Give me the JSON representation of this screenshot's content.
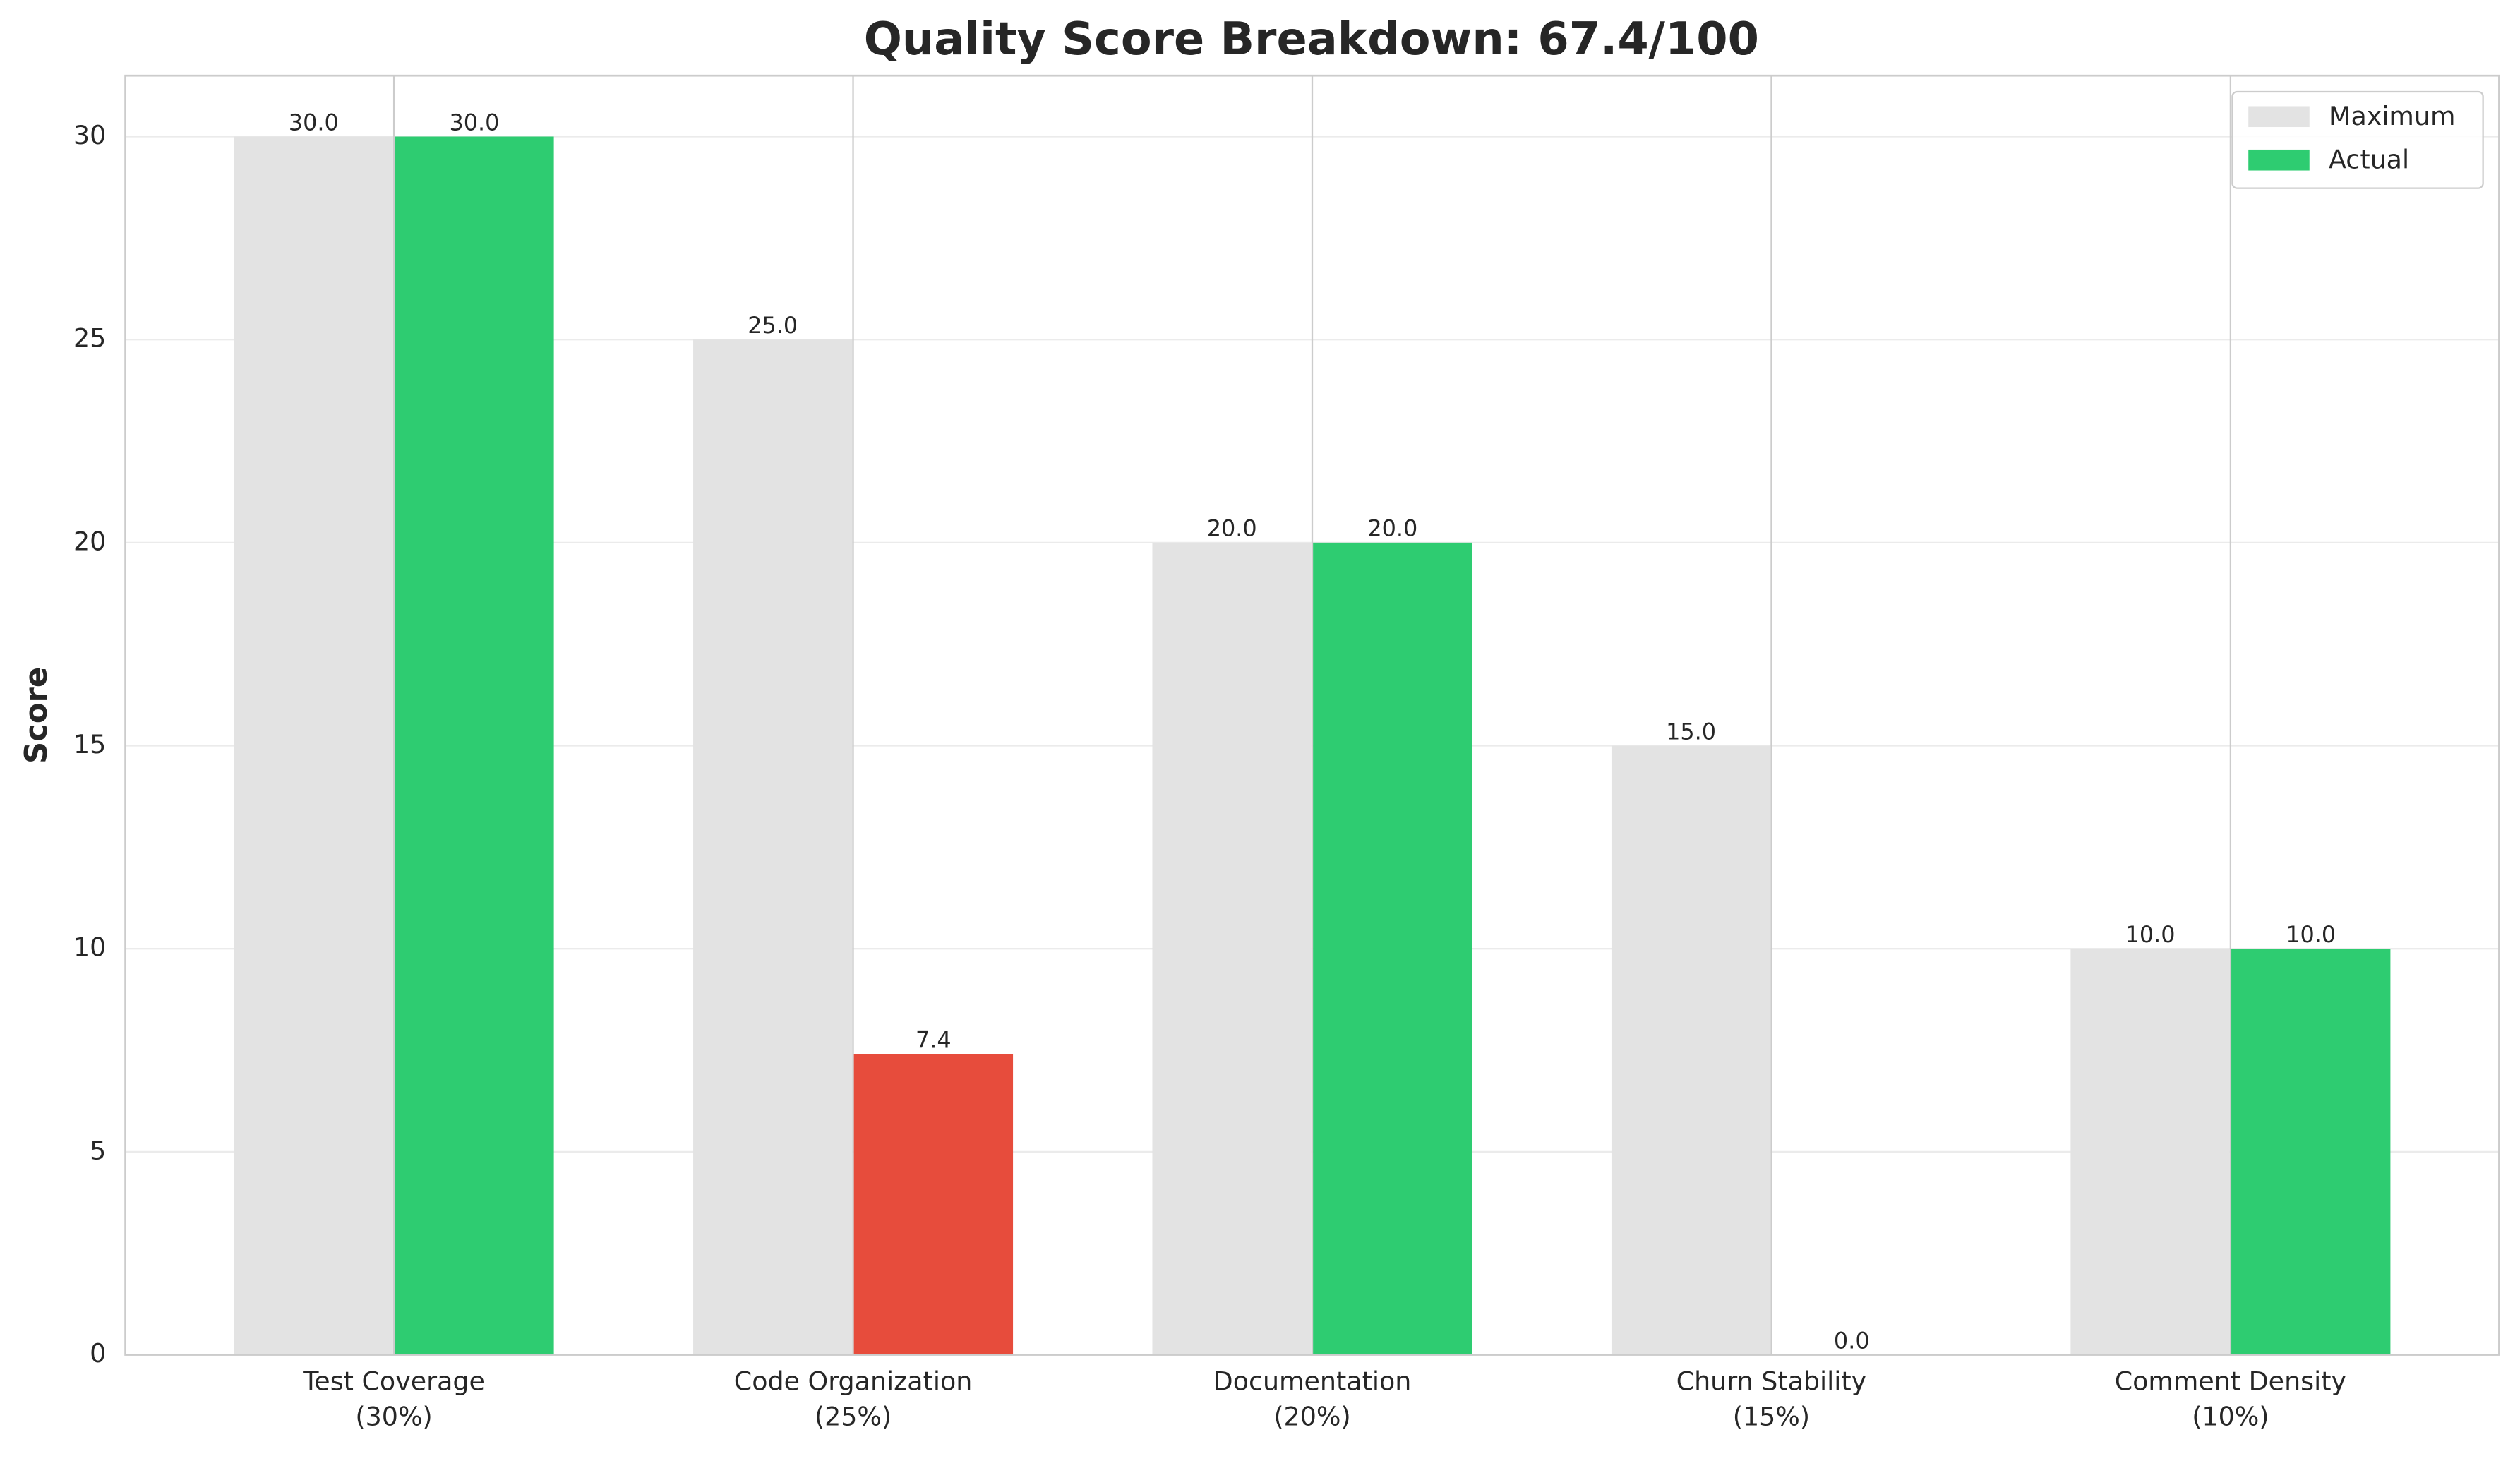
{
  "chart_data": {
    "type": "bar",
    "title": "Quality Score Breakdown: 67.4/100",
    "ylabel": "Score",
    "categories": [
      "Test Coverage\n(30%)",
      "Code Organization\n(25%)",
      "Documentation\n(20%)",
      "Churn Stability\n(15%)",
      "Comment Density\n(10%)"
    ],
    "series": [
      {
        "name": "Maximum",
        "color": "#e3e3e3",
        "values": [
          30,
          25,
          20,
          15,
          10
        ],
        "value_labels": [
          "30.0",
          "25.0",
          "20.0",
          "15.0",
          "10.0"
        ]
      },
      {
        "name": "Actual",
        "color": "#2ecc71",
        "colors": [
          "#2ecc71",
          "#e74c3c",
          "#2ecc71",
          "#e74c3c",
          "#2ecc71"
        ],
        "values": [
          30,
          7.4,
          20,
          0,
          10
        ],
        "value_labels": [
          "30.0",
          "7.4",
          "20.0",
          "0.0",
          "10.0"
        ]
      }
    ],
    "ylim": [
      0,
      31.5
    ],
    "yticks": [
      0,
      5,
      10,
      15,
      20,
      25,
      30
    ],
    "grid": true,
    "legend": "upper right"
  }
}
